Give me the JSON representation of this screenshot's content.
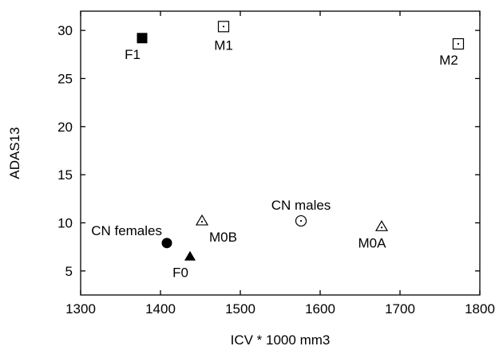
{
  "chart_data": {
    "type": "scatter",
    "title": "",
    "xlabel": "ICV * 1000 mm3",
    "ylabel": "ADAS13",
    "xlim": [
      1300,
      1800
    ],
    "ylim": [
      2.5,
      32
    ],
    "x_ticks": [
      1300,
      1400,
      1500,
      1600,
      1700,
      1800
    ],
    "y_ticks": [
      5,
      10,
      15,
      20,
      25,
      30
    ],
    "grid": false,
    "points": [
      {
        "label": "F1",
        "x": 1377,
        "y": 29.2,
        "marker": "square-filled",
        "label_pos": "below-left"
      },
      {
        "label": "M1",
        "x": 1479,
        "y": 30.4,
        "marker": "square-dot",
        "label_pos": "below"
      },
      {
        "label": "M2",
        "x": 1773,
        "y": 28.6,
        "marker": "square-dot",
        "label_pos": "below-left"
      },
      {
        "label": "CN females",
        "x": 1408,
        "y": 7.9,
        "marker": "circle-filled",
        "label_pos": "above-left"
      },
      {
        "label": "F0",
        "x": 1437,
        "y": 6.5,
        "marker": "triangle-filled",
        "label_pos": "below-left"
      },
      {
        "label": "M0B",
        "x": 1452,
        "y": 10.2,
        "marker": "triangle-dot",
        "label_pos": "below-right"
      },
      {
        "label": "CN males",
        "x": 1576,
        "y": 10.2,
        "marker": "circle-dot",
        "label_pos": "above"
      },
      {
        "label": "M0A",
        "x": 1677,
        "y": 9.6,
        "marker": "triangle-dot",
        "label_pos": "below-left"
      }
    ]
  }
}
